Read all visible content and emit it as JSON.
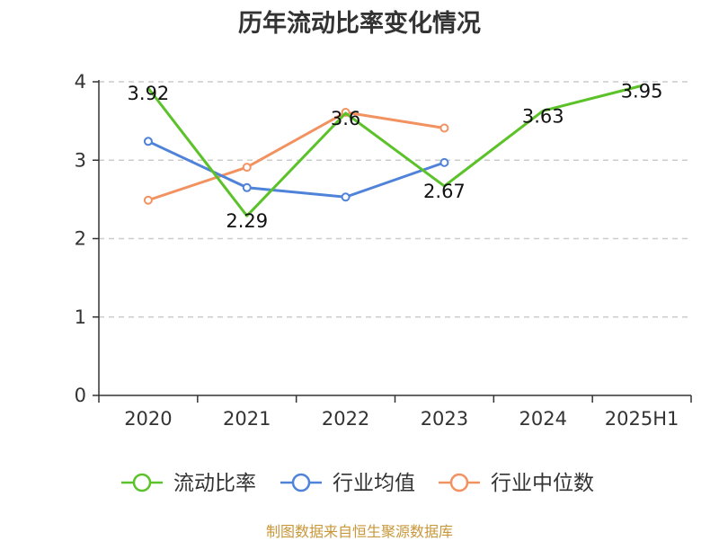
{
  "title": "历年流动比率变化情况",
  "source_note": "制图数据来自恒生聚源数据库",
  "colors": {
    "source_text": "#c8973a",
    "axis": "#333333",
    "grid": "#cccccc"
  },
  "chart_data": {
    "type": "line",
    "title": "历年流动比率变化情况",
    "xlabel": "",
    "ylabel": "",
    "categories": [
      "2020",
      "2021",
      "2022",
      "2023",
      "2024",
      "2025H1"
    ],
    "ylim": [
      0,
      4
    ],
    "yticks": [
      0,
      1,
      2,
      3,
      4
    ],
    "grid": true,
    "legend_position": "bottom",
    "series": [
      {
        "name": "流动比率",
        "color": "#5cc22a",
        "values": [
          3.92,
          2.29,
          3.6,
          2.67,
          3.63,
          3.95
        ],
        "labels": [
          "3.92",
          "2.29",
          "3.6",
          "2.67",
          "3.63",
          "3.95"
        ],
        "show_labels": true
      },
      {
        "name": "行业均值",
        "color": "#4f82d9",
        "values": [
          3.24,
          2.65,
          2.53,
          2.97,
          null,
          null
        ],
        "show_labels": false
      },
      {
        "name": "行业中位数",
        "color": "#f29260",
        "values": [
          2.49,
          2.91,
          3.61,
          3.41,
          null,
          null
        ],
        "show_labels": false
      }
    ]
  }
}
